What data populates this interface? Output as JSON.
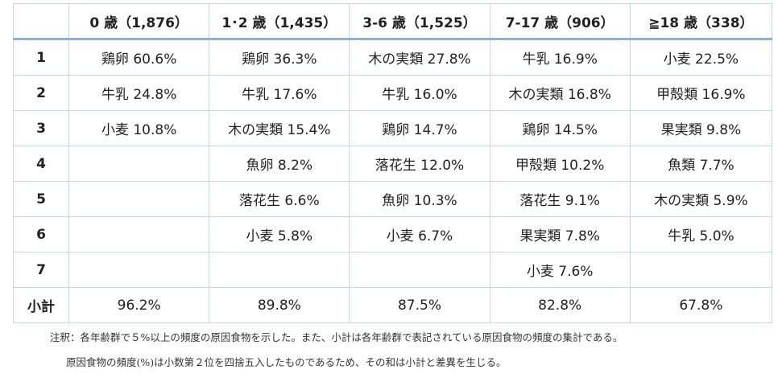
{
  "table": {
    "headers": [
      "",
      "0 歳（1,876）",
      "1･2 歳（1,435）",
      "3-6 歳（1,525）",
      "7-17 歳（906）",
      "≧18 歳（338）"
    ],
    "rows": [
      {
        "rank": "1",
        "cells": [
          "鶏卵  60.6%",
          "鶏卵  36.3%",
          "木の実類  27.8%",
          "牛乳  16.9%",
          "小麦  22.5%"
        ]
      },
      {
        "rank": "2",
        "cells": [
          "牛乳  24.8%",
          "牛乳  17.6%",
          "牛乳  16.0%",
          "木の実類  16.8%",
          "甲殻類  16.9%"
        ]
      },
      {
        "rank": "3",
        "cells": [
          "小麦  10.8%",
          "木の実類  15.4%",
          "鶏卵  14.7%",
          "鶏卵  14.5%",
          "果実類  9.8%"
        ]
      },
      {
        "rank": "4",
        "cells": [
          "",
          "魚卵  8.2%",
          "落花生  12.0%",
          "甲殻類  10.2%",
          "魚類  7.7%"
        ]
      },
      {
        "rank": "5",
        "cells": [
          "",
          "落花生  6.6%",
          "魚卵  10.3%",
          "落花生  9.1%",
          "木の実類  5.9%"
        ]
      },
      {
        "rank": "6",
        "cells": [
          "",
          "小麦  5.8%",
          "小麦  6.7%",
          "果実類  7.8%",
          "牛乳  5.0%"
        ]
      },
      {
        "rank": "7",
        "cells": [
          "",
          "",
          "",
          "小麦  7.6%",
          ""
        ]
      },
      {
        "rank": "小計",
        "cells": [
          "96.2%",
          "89.8%",
          "87.5%",
          "82.8%",
          "67.8%"
        ]
      }
    ]
  },
  "notes": {
    "line1": "注釈：各年齢群で５%以上の頻度の原因食物を示した。また、小計は各年齢群で表記されている原因食物の頻度の集計である。",
    "line2": "原因食物の頻度(%)は小数第２位を四捨五入したものであるため、その和は小計と差異を生じる。"
  },
  "colors": {
    "border": "#c5d6ec",
    "header_rule": "#8fb0d6",
    "text": "#222222"
  }
}
